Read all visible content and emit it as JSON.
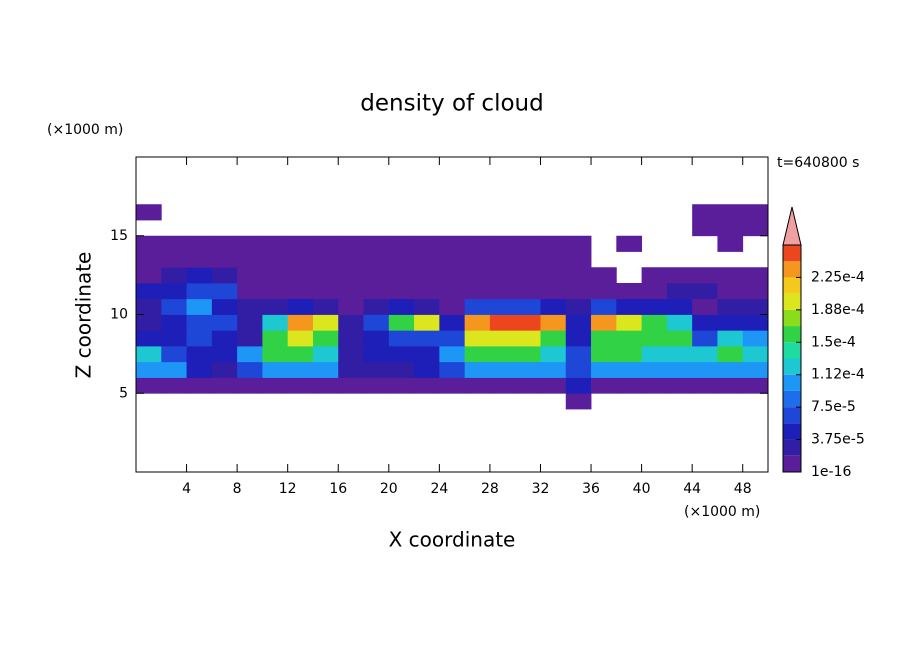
{
  "chart_data": {
    "type": "contour",
    "title": "density of cloud",
    "x_label": "X coordinate",
    "y_label": "Z coordinate",
    "x_unit_label": "(×1000 m)",
    "y_unit_label": "(×1000 m)",
    "time_label": "t=640800 s",
    "xlim": [
      0,
      50
    ],
    "ylim": [
      0,
      20
    ],
    "xticks": [
      4,
      8,
      12,
      16,
      20,
      24,
      28,
      32,
      36,
      40,
      44,
      48
    ],
    "yticks": [
      5,
      10,
      15
    ],
    "x": [
      1,
      3,
      5,
      7,
      9,
      11,
      13,
      15,
      17,
      19,
      21,
      23,
      25,
      27,
      29,
      31,
      33,
      35,
      37,
      39,
      41,
      43,
      45,
      47,
      49
    ],
    "y": [
      4.5,
      5.5,
      6.5,
      7.5,
      8.5,
      9.5,
      10.5,
      11.5,
      12.5,
      13.5,
      14.5,
      15.5,
      16.5,
      17.5
    ],
    "z": [
      [
        null,
        null,
        null,
        null,
        null,
        null,
        null,
        null,
        null,
        null,
        null,
        null,
        null,
        null,
        null,
        null,
        null,
        1e-05,
        null,
        null,
        null,
        null,
        null,
        null,
        null
      ],
      [
        1e-05,
        1e-05,
        1e-05,
        1e-05,
        1e-05,
        1e-05,
        1e-05,
        1e-05,
        1e-05,
        1e-05,
        1e-05,
        1e-05,
        1e-05,
        1e-05,
        1e-05,
        1e-05,
        1e-05,
        4.5e-05,
        1e-05,
        1e-05,
        1e-05,
        1e-05,
        1e-05,
        1e-05,
        1e-05
      ],
      [
        0.0001,
        0.0001,
        4.5e-05,
        2.5e-05,
        6.5e-05,
        0.0001,
        0.0001,
        0.0001,
        2.5e-05,
        2.5e-05,
        2.5e-05,
        4.5e-05,
        6.5e-05,
        0.0001,
        0.0001,
        0.0001,
        0.0001,
        6.5e-05,
        0.0001,
        0.0001,
        0.0001,
        0.0001,
        0.0001,
        0.0001,
        0.0001
      ],
      [
        0.00012,
        6.5e-05,
        4.5e-05,
        4.5e-05,
        0.0001,
        0.000155,
        0.000155,
        0.00012,
        2.5e-05,
        4.5e-05,
        4.5e-05,
        4.5e-05,
        0.0001,
        0.000155,
        0.000155,
        0.000155,
        0.00012,
        6.5e-05,
        0.000155,
        0.000155,
        0.00012,
        0.00012,
        0.00012,
        0.000155,
        0.00012
      ],
      [
        4.5e-05,
        4.5e-05,
        6.5e-05,
        4.5e-05,
        2.5e-05,
        0.000155,
        0.000195,
        0.000155,
        2.5e-05,
        4.5e-05,
        6.5e-05,
        6.5e-05,
        6.5e-05,
        0.000195,
        0.000195,
        0.000195,
        0.000155,
        4.5e-05,
        0.000155,
        0.000155,
        0.000155,
        0.000155,
        6.5e-05,
        0.00012,
        0.0001
      ],
      [
        2.5e-05,
        4.5e-05,
        6.5e-05,
        6.5e-05,
        2.5e-05,
        0.00012,
        0.00023,
        0.000195,
        2.5e-05,
        6.5e-05,
        0.000155,
        0.000195,
        4.5e-05,
        0.00023,
        0.000245,
        0.000245,
        0.00023,
        4.5e-05,
        0.00023,
        0.000195,
        0.000155,
        0.00012,
        4.5e-05,
        4.5e-05,
        4.5e-05
      ],
      [
        2.5e-05,
        6.5e-05,
        0.0001,
        4.5e-05,
        2.5e-05,
        2.5e-05,
        4.5e-05,
        2.5e-05,
        1e-05,
        2.5e-05,
        4.5e-05,
        2.5e-05,
        1e-05,
        6.5e-05,
        6.5e-05,
        6.5e-05,
        4.5e-05,
        2.5e-05,
        6.5e-05,
        4.5e-05,
        4.5e-05,
        4.5e-05,
        1e-05,
        2.5e-05,
        2.5e-05
      ],
      [
        4.5e-05,
        4.5e-05,
        6.5e-05,
        6.5e-05,
        1e-05,
        1e-05,
        1e-05,
        1e-05,
        1e-05,
        1e-05,
        1e-05,
        1e-05,
        1e-05,
        1e-05,
        1e-05,
        1e-05,
        1e-05,
        1e-05,
        1e-05,
        1e-05,
        1e-05,
        2.5e-05,
        2.5e-05,
        1e-05,
        1e-05
      ],
      [
        1e-05,
        2.5e-05,
        4.5e-05,
        2.5e-05,
        1e-05,
        1e-05,
        1e-05,
        1e-05,
        1e-05,
        1e-05,
        1e-05,
        1e-05,
        1e-05,
        1e-05,
        1e-05,
        1e-05,
        1e-05,
        1e-05,
        1e-05,
        null,
        1e-05,
        1e-05,
        1e-05,
        1e-05,
        1e-05
      ],
      [
        1e-05,
        1e-05,
        1e-05,
        1e-05,
        1e-05,
        1e-05,
        1e-05,
        1e-05,
        1e-05,
        1e-05,
        1e-05,
        1e-05,
        1e-05,
        1e-05,
        1e-05,
        1e-05,
        1e-05,
        1e-05,
        null,
        null,
        null,
        null,
        null,
        null,
        null
      ],
      [
        1e-05,
        1e-05,
        1e-05,
        1e-05,
        1e-05,
        1e-05,
        1e-05,
        1e-05,
        1e-05,
        1e-05,
        1e-05,
        1e-05,
        1e-05,
        1e-05,
        1e-05,
        1e-05,
        1e-05,
        1e-05,
        null,
        1e-05,
        null,
        null,
        null,
        1e-05,
        null
      ],
      [
        null,
        null,
        null,
        null,
        null,
        null,
        null,
        null,
        null,
        null,
        null,
        null,
        null,
        null,
        null,
        null,
        null,
        null,
        null,
        null,
        null,
        null,
        1e-05,
        1e-05,
        1e-05
      ],
      [
        1e-05,
        null,
        null,
        null,
        null,
        null,
        null,
        null,
        null,
        null,
        null,
        null,
        null,
        null,
        null,
        null,
        null,
        null,
        null,
        null,
        null,
        null,
        1e-05,
        1e-05,
        1e-05
      ],
      [
        null,
        null,
        null,
        null,
        null,
        null,
        null,
        null,
        null,
        null,
        null,
        null,
        null,
        null,
        null,
        null,
        null,
        null,
        null,
        null,
        null,
        null,
        null,
        null,
        null
      ]
    ],
    "colorbar": {
      "levels": [
        1e-16,
        1.875e-05,
        3.75e-05,
        5.625e-05,
        7.5e-05,
        9.375e-05,
        0.0001125,
        0.00013125,
        0.00015,
        0.00016875,
        0.0001875,
        0.00020625,
        0.000225,
        0.00024375,
        0.0002625
      ],
      "colors": [
        "#5a1e9b",
        "#321ea5",
        "#1e1eb9",
        "#1e46d7",
        "#1e6eeb",
        "#1e96f5",
        "#1ec8d2",
        "#1edca0",
        "#32d246",
        "#8cdc1e",
        "#dce61e",
        "#f5c81e",
        "#f5961e",
        "#eb461e"
      ],
      "extend_color": "#f0a0a0",
      "ticks": [
        1e-16,
        {
          "value": 3.75e-05,
          "label": "3.75e-5"
        },
        {
          "value": 7.5e-05,
          "label": "7.5e-5"
        },
        {
          "value": 0.0001125,
          "label": "1.12e-4"
        },
        {
          "value": 0.00015,
          "label": "1.5e-4"
        },
        {
          "value": 0.0001875,
          "label": "1.88e-4"
        },
        {
          "value": 0.000225,
          "label": "2.25e-4"
        }
      ]
    }
  }
}
